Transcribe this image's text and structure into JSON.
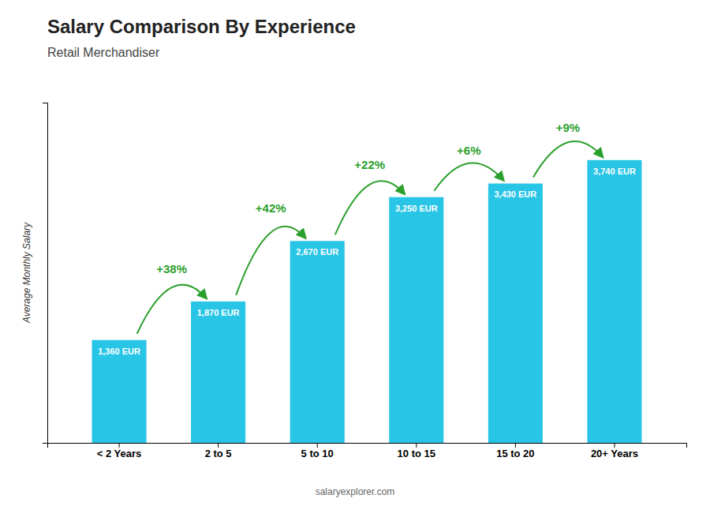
{
  "chart_data": {
    "type": "bar",
    "title": "Salary Comparison By Experience",
    "subtitle": "Retail Merchandiser",
    "ylabel": "Average Monthly Salary",
    "categories": [
      "< 2 Years",
      "2 to 5",
      "5 to 10",
      "10 to 15",
      "15 to 20",
      "20+ Years"
    ],
    "values": [
      1360,
      1870,
      2670,
      3250,
      3430,
      3740
    ],
    "value_labels": [
      "1,360 EUR",
      "1,870 EUR",
      "2,670 EUR",
      "3,250 EUR",
      "3,430 EUR",
      "3,740 EUR"
    ],
    "data_labels": true,
    "annotations": [
      "+38%",
      "+42%",
      "+22%",
      "+6%",
      "+9%"
    ],
    "watermark": "salaryexplorer.com",
    "color": "#29c5e6",
    "ylim": [
      0,
      4500
    ],
    "tick_labels": "x",
    "grid": false
  }
}
